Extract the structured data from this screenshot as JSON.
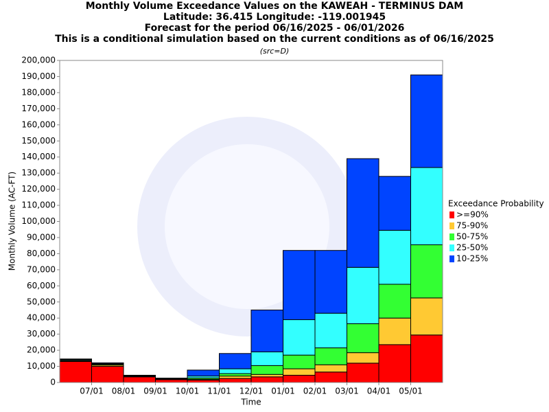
{
  "chart_data": {
    "type": "stacked_bar",
    "title": [
      "Monthly Volume Exceedance Values on the KAWEAH - TERMINUS DAM",
      "Latitude: 36.415 Longitude: -119.001945",
      "Forecast for the period 06/16/2025 - 06/01/2026",
      "This is a conditional simulation based on the current conditions as of 06/16/2025"
    ],
    "subtitle": "(src=D)",
    "xlabel": "Time",
    "ylabel": "Monthly Volume (AC-FT)",
    "legend_title": "Exceedance Probability",
    "categories": [
      null,
      "07/01",
      "08/01",
      "09/01",
      "10/01",
      "11/01",
      "12/01",
      "01/01",
      "02/01",
      "03/01",
      "04/01",
      "05/01"
    ],
    "series": [
      {
        "name": ">=90%",
        "color": "#ff0000",
        "values": [
          13000,
          10000,
          3500,
          1800,
          1500,
          2500,
          3500,
          4500,
          6500,
          12000,
          23500,
          29500
        ]
      },
      {
        "name": "75-90%",
        "color": "#ffc933",
        "values": [
          500,
          800,
          400,
          200,
          500,
          1500,
          1500,
          4000,
          4500,
          6500,
          16500,
          23000
        ]
      },
      {
        "name": "50-75%",
        "color": "#33ff33",
        "values": [
          300,
          500,
          200,
          200,
          800,
          1500,
          5500,
          8500,
          10500,
          18000,
          21000,
          33000
        ]
      },
      {
        "name": "25-50%",
        "color": "#33ffff",
        "values": [
          500,
          400,
          200,
          200,
          1200,
          3000,
          8500,
          22000,
          21500,
          35000,
          33500,
          48000
        ]
      },
      {
        "name": "10-25%",
        "color": "#0044ff",
        "values": [
          300,
          500,
          200,
          300,
          3700,
          9500,
          26000,
          43000,
          39000,
          67500,
          33500,
          57500
        ]
      }
    ],
    "ylim": [
      0,
      200000
    ],
    "yticks": [
      0,
      {
        "value": 10000,
        "label": "10,000"
      },
      {
        "value": 20000,
        "label": "20,000"
      },
      {
        "value": 30000,
        "label": "30,000"
      },
      {
        "value": 40000,
        "label": "40,000"
      },
      {
        "value": 50000,
        "label": "50,000"
      },
      {
        "value": 60000,
        "label": "60,000"
      },
      {
        "value": 70000,
        "label": "70,000"
      },
      {
        "value": 80000,
        "label": "80,000"
      },
      {
        "value": 90000,
        "label": "90,000"
      },
      {
        "value": 100000,
        "label": "100,000"
      },
      {
        "value": 110000,
        "label": "110,000"
      },
      {
        "value": 120000,
        "label": "120,000"
      },
      {
        "value": 130000,
        "label": "130,000"
      },
      {
        "value": 140000,
        "label": "140,000"
      },
      {
        "value": 150000,
        "label": "150,000"
      },
      {
        "value": 160000,
        "label": "160,000"
      },
      {
        "value": 170000,
        "label": "170,000"
      },
      {
        "value": 180000,
        "label": "180,000"
      },
      {
        "value": 190000,
        "label": "190,000"
      },
      {
        "value": 200000,
        "label": "200,000"
      }
    ],
    "legend": "right"
  }
}
